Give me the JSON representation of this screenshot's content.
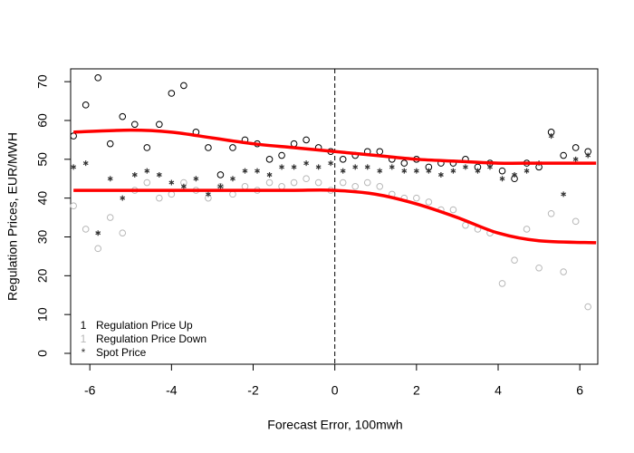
{
  "chart_data": {
    "type": "scatter",
    "x_label": "Forecast Error, 100mwh",
    "y_label": "Regulation Prices, EUR/MWH",
    "x": [
      -6.4,
      -6.1,
      -5.8,
      -5.5,
      -5.2,
      -4.9,
      -4.6,
      -4.3,
      -4,
      -3.7,
      -3.4,
      -3.1,
      -2.8,
      -2.5,
      -2.2,
      -1.9,
      -1.6,
      -1.3,
      -1,
      -0.7,
      -0.4,
      -0.1,
      0.2,
      0.5,
      0.8,
      1.1,
      1.4,
      1.7,
      2,
      2.3,
      2.6,
      2.9,
      3.2,
      3.5,
      3.8,
      4.1,
      4.4,
      4.7,
      5,
      5.3,
      5.6,
      5.9,
      6.2
    ],
    "series": [
      {
        "name": "Regulation Price Up",
        "legend_symbol": "1",
        "marker": "circle",
        "color": "#000000",
        "values": [
          56,
          64,
          71,
          54,
          61,
          59,
          53,
          59,
          67,
          69,
          57,
          53,
          46,
          53,
          55,
          54,
          50,
          51,
          54,
          55,
          53,
          52,
          50,
          51,
          52,
          52,
          50,
          49,
          50,
          48,
          49,
          49,
          50,
          48,
          49,
          47,
          45,
          49,
          48,
          57,
          51,
          53,
          52
        ]
      },
      {
        "name": "Regulation Price Down",
        "legend_symbol": "1",
        "marker": "circle",
        "color": "#b8b8b8",
        "values": [
          38,
          32,
          27,
          35,
          31,
          42,
          44,
          40,
          41,
          44,
          42,
          40,
          43,
          41,
          43,
          42,
          44,
          43,
          44,
          45,
          44,
          42,
          44,
          43,
          44,
          43,
          41,
          40,
          40,
          39,
          37,
          37,
          33,
          32,
          31,
          18,
          24,
          32,
          22,
          36,
          21,
          34,
          12
        ]
      },
      {
        "name": "Spot Price",
        "legend_symbol": "*",
        "marker": "star",
        "color": "#333333",
        "values": [
          48,
          49,
          31,
          45,
          40,
          46,
          47,
          46,
          44,
          43,
          45,
          41,
          43,
          45,
          47,
          47,
          46,
          48,
          48,
          49,
          48,
          49,
          47,
          48,
          48,
          47,
          48,
          47,
          47,
          47,
          46,
          47,
          48,
          47,
          48,
          45,
          46,
          47,
          49,
          56,
          41,
          50,
          51
        ]
      }
    ],
    "fit_x": [
      -6.4,
      -5,
      -4,
      -3,
      -2,
      -1,
      0,
      1,
      2,
      3,
      4,
      5,
      6.4
    ],
    "fits": [
      {
        "color": "#ff0000",
        "values": [
          57,
          57.5,
          57,
          55.5,
          54,
          53,
          52,
          51,
          50,
          49.5,
          49,
          49,
          49
        ]
      },
      {
        "color": "#ff0000",
        "values": [
          42,
          42,
          42,
          42,
          42,
          42,
          42,
          41,
          38.5,
          35,
          31,
          29,
          28.5
        ]
      }
    ],
    "vline": 0,
    "xlim": [
      -6.47,
      6.44
    ],
    "ylim": [
      -2.8,
      73.3
    ],
    "xticks": [
      -6,
      -4,
      -2,
      0,
      2,
      4,
      6
    ],
    "yticks": [
      0,
      10,
      20,
      30,
      40,
      50,
      60,
      70
    ],
    "legend": "bottomleft"
  }
}
